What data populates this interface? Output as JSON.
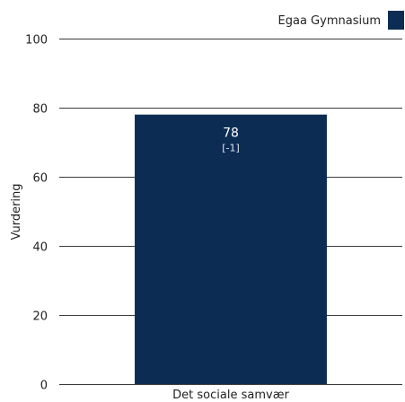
{
  "chart_data": {
    "type": "bar",
    "categories": [
      "Det sociale samvær"
    ],
    "series": [
      {
        "name": "Egaa Gymnasium",
        "values": [
          78
        ],
        "change_labels": [
          "[-1]"
        ],
        "color": "#0d2c54"
      }
    ],
    "ylabel": "Vurdering",
    "xlabel": "",
    "ylim": [
      0,
      100
    ],
    "yticks": [
      0,
      20,
      40,
      60,
      80,
      100
    ],
    "grid": true,
    "legend_position": "top-right"
  }
}
